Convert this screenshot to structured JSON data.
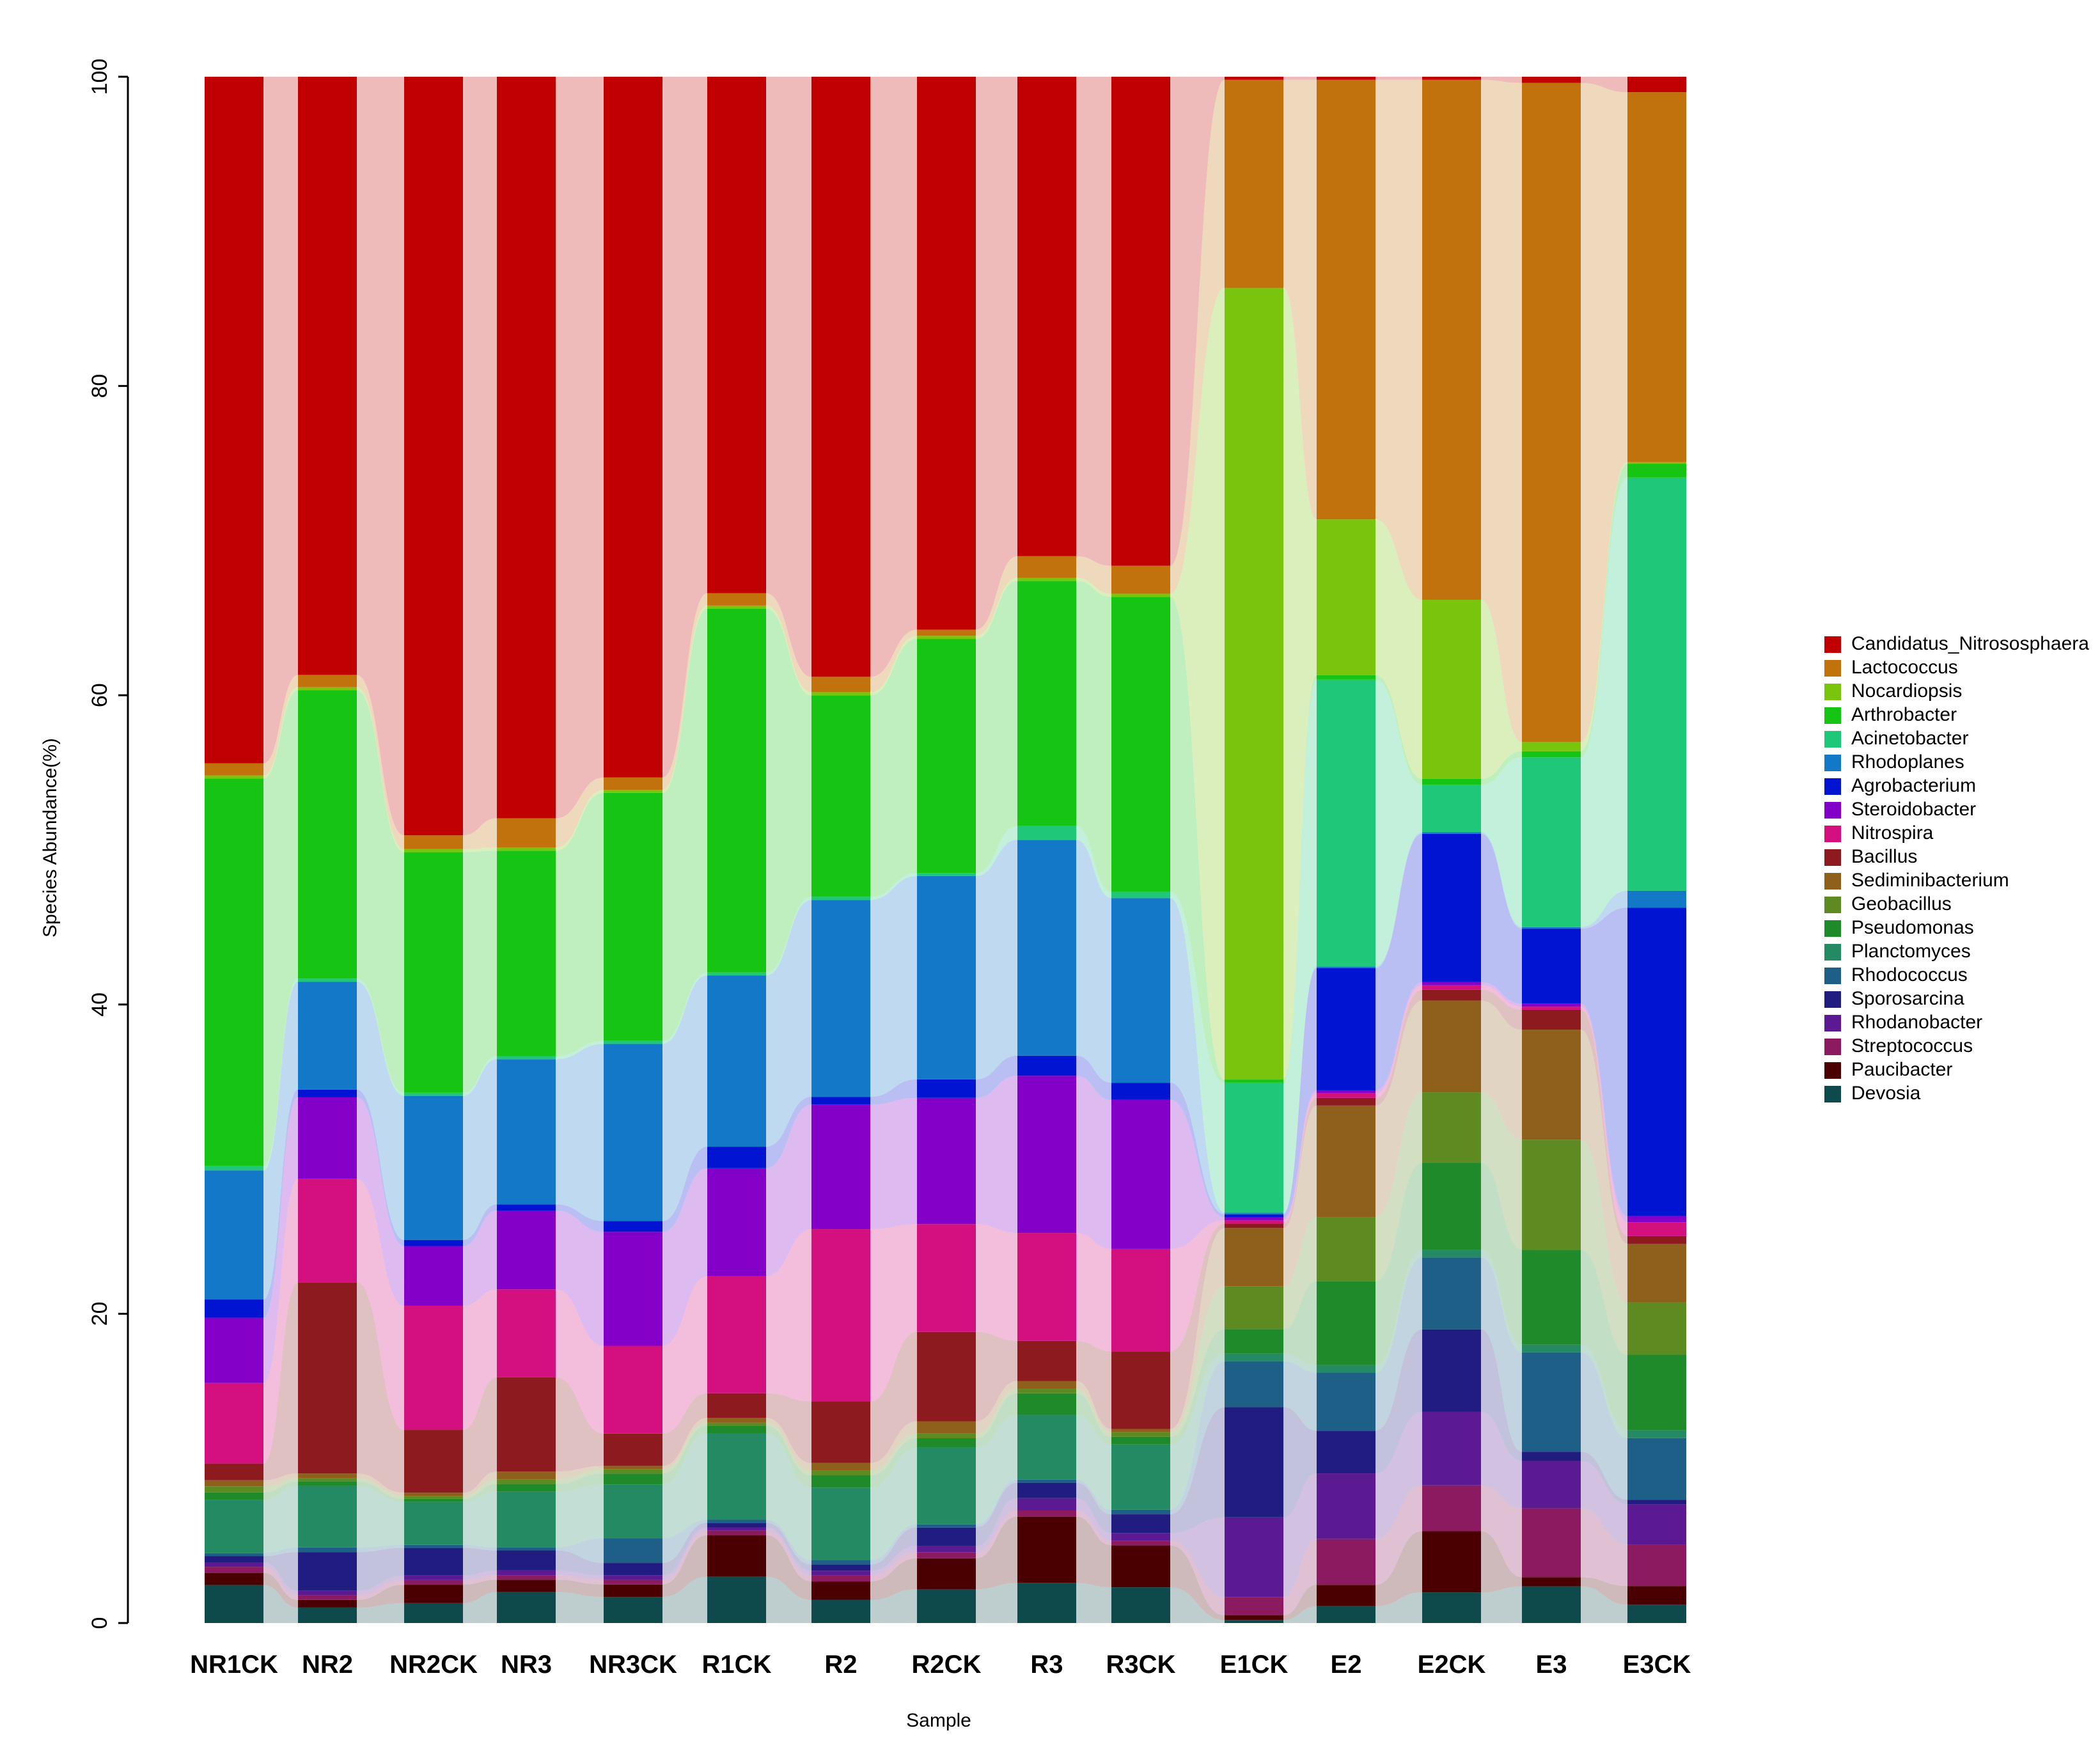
{
  "chart_data": {
    "type": "bar",
    "stacked": true,
    "normalized": true,
    "title": "",
    "xlabel": "Sample",
    "ylabel": "Species Abundance(%)",
    "ylim": [
      0,
      100
    ],
    "yticks": [
      0,
      20,
      40,
      60,
      80,
      100
    ],
    "grid": false,
    "legend_position": "right",
    "categories": [
      "NR1CK",
      "NR2",
      "NR2CK",
      "NR3",
      "NR3CK",
      "R1CK",
      "R2",
      "R2CK",
      "R3",
      "R3CK",
      "E1CK",
      "E2",
      "E2CK",
      "E3",
      "E3CK"
    ],
    "series": [
      {
        "name": "Devosia",
        "color": "#0e4a4c",
        "values": [
          2.5,
          1.0,
          1.3,
          2.0,
          1.7,
          3.0,
          1.5,
          2.2,
          2.6,
          2.3,
          0.2,
          1.1,
          2.0,
          2.4,
          1.2
        ]
      },
      {
        "name": "Paucibacter",
        "color": "#4a0000",
        "values": [
          0.8,
          0.5,
          1.2,
          0.8,
          0.8,
          2.7,
          1.2,
          2.0,
          4.3,
          2.7,
          0.3,
          1.4,
          4.0,
          0.6,
          1.2
        ]
      },
      {
        "name": "Streptococcus",
        "color": "#8c1a60",
        "values": [
          0.4,
          0.3,
          0.3,
          0.3,
          0.3,
          0.3,
          0.4,
          0.4,
          0.4,
          0.3,
          1.2,
          3.0,
          3.0,
          4.5,
          2.7
        ]
      },
      {
        "name": "Rhodanobacter",
        "color": "#5c1a92",
        "values": [
          0.3,
          0.3,
          0.3,
          0.3,
          0.3,
          0.2,
          0.3,
          0.4,
          0.8,
          0.5,
          5.2,
          4.3,
          4.8,
          3.1,
          2.6
        ]
      },
      {
        "name": "Sporosarcina",
        "color": "#211c7f",
        "values": [
          0.4,
          2.5,
          1.8,
          1.3,
          0.8,
          0.3,
          0.4,
          1.2,
          1.0,
          1.2,
          7.2,
          2.8,
          5.4,
          0.6,
          0.3
        ]
      },
      {
        "name": "Rhodococcus",
        "color": "#1e5f87",
        "values": [
          0.2,
          0.3,
          0.2,
          0.2,
          1.6,
          0.2,
          0.3,
          0.2,
          0.2,
          0.3,
          3.0,
          3.8,
          4.7,
          6.5,
          4.0
        ]
      },
      {
        "name": "Planctomyces",
        "color": "#238a64",
        "values": [
          3.5,
          4.0,
          2.8,
          3.6,
          3.5,
          5.6,
          4.7,
          5.0,
          4.2,
          4.2,
          0.5,
          0.5,
          0.5,
          0.5,
          0.5
        ]
      },
      {
        "name": "Pseudomonas",
        "color": "#1f8a2a",
        "values": [
          0.5,
          0.3,
          0.2,
          0.5,
          0.7,
          0.5,
          0.8,
          0.6,
          1.4,
          0.5,
          1.6,
          5.5,
          5.7,
          6.2,
          4.9
        ]
      },
      {
        "name": "Geobacillus",
        "color": "#5e8a22",
        "values": [
          0.4,
          0.2,
          0.2,
          0.3,
          0.3,
          0.2,
          0.3,
          0.3,
          0.3,
          0.3,
          2.8,
          4.2,
          4.6,
          7.2,
          3.4
        ]
      },
      {
        "name": "Sediminibacterium",
        "color": "#8f5f1c",
        "values": [
          0.4,
          0.3,
          0.2,
          0.5,
          0.2,
          0.3,
          0.5,
          0.8,
          0.5,
          0.2,
          3.8,
          7.3,
          6.0,
          7.2,
          3.8
        ]
      },
      {
        "name": "Bacillus",
        "color": "#8c1a1e",
        "values": [
          1.1,
          12.4,
          4.1,
          6.1,
          2.1,
          1.6,
          4.0,
          5.8,
          2.6,
          5.0,
          0.3,
          0.5,
          0.7,
          1.3,
          0.5
        ]
      },
      {
        "name": "Nitrospira",
        "color": "#d4107e",
        "values": [
          5.3,
          6.7,
          8.1,
          5.7,
          5.7,
          7.6,
          11.2,
          7.0,
          7.0,
          6.6,
          0.2,
          0.3,
          0.3,
          0.2,
          0.9
        ]
      },
      {
        "name": "Steroidobacter",
        "color": "#8200c8",
        "values": [
          4.3,
          5.3,
          3.9,
          5.1,
          7.4,
          7.0,
          8.1,
          8.2,
          10.2,
          9.6,
          0.2,
          0.2,
          0.2,
          0.2,
          0.4
        ]
      },
      {
        "name": "Agrobacterium",
        "color": "#0014d2",
        "values": [
          1.2,
          0.5,
          0.4,
          0.4,
          0.7,
          1.4,
          0.5,
          1.2,
          1.3,
          1.1,
          0.2,
          8.0,
          9.7,
          4.9,
          20.0
        ]
      },
      {
        "name": "Rhodoplanes",
        "color": "#1478c8",
        "values": [
          8.5,
          7.0,
          9.4,
          9.4,
          11.5,
          11.1,
          12.8,
          13.2,
          14.0,
          11.9,
          0.1,
          0.1,
          0.1,
          0.1,
          1.1
        ]
      },
      {
        "name": "Acinetobacter",
        "color": "#1ec878",
        "values": [
          0.3,
          0.2,
          0.2,
          0.2,
          0.2,
          0.2,
          0.2,
          0.2,
          0.9,
          0.4,
          8.5,
          18.8,
          3.1,
          11.1,
          26.8
        ]
      },
      {
        "name": "Arthrobacter",
        "color": "#16c514",
        "values": [
          25.5,
          18.7,
          15.7,
          13.3,
          16.1,
          23.6,
          13.1,
          15.2,
          15.9,
          19.0,
          0.2,
          0.3,
          0.4,
          0.4,
          0.9
        ]
      },
      {
        "name": "Nocardiopsis",
        "color": "#79c40c",
        "values": [
          0.2,
          0.2,
          0.2,
          0.2,
          0.2,
          0.2,
          0.2,
          0.2,
          0.2,
          0.2,
          51.7,
          10.2,
          11.7,
          0.6,
          0.1
        ]
      },
      {
        "name": "Lactococcus",
        "color": "#c2720c",
        "values": [
          0.8,
          0.8,
          0.9,
          1.9,
          0.8,
          0.8,
          1.0,
          0.4,
          1.4,
          1.8,
          13.6,
          28.8,
          34.0,
          43.1,
          24.0
        ]
      },
      {
        "name": "Candidatus_Nitrososphaera",
        "color": "#c00000",
        "values": [
          45.2,
          38.8,
          49.5,
          48.0,
          45.5,
          33.5,
          39.0,
          35.9,
          31.1,
          31.5,
          0.2,
          0.2,
          0.2,
          0.4,
          1.0
        ]
      }
    ]
  }
}
